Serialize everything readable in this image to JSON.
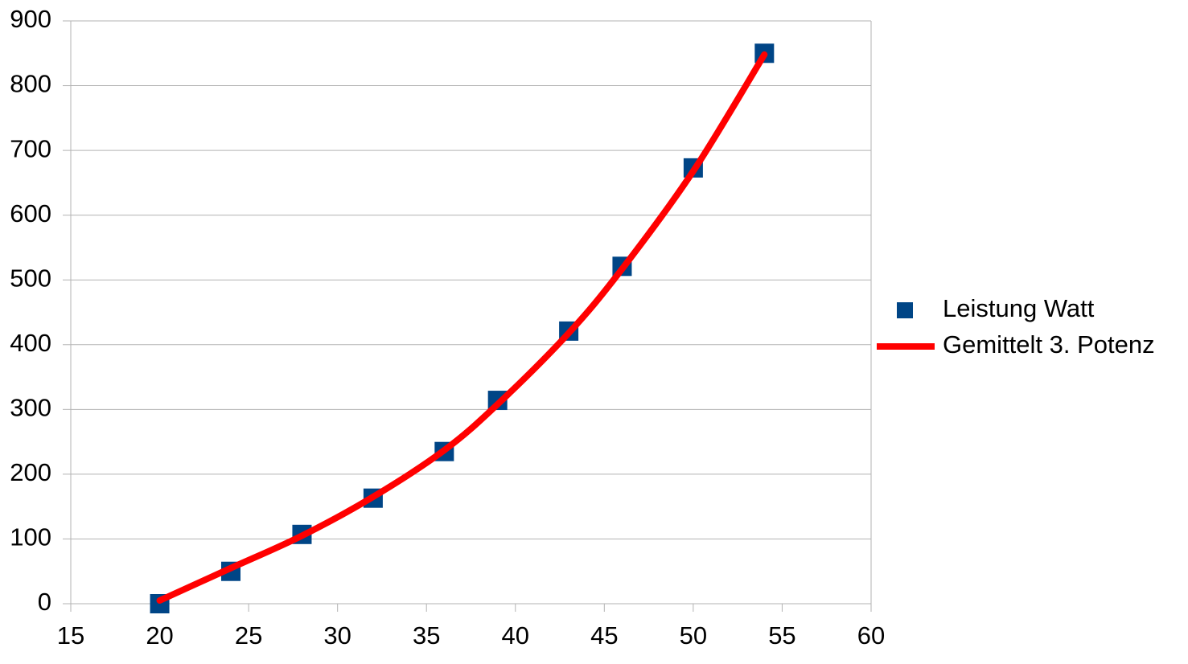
{
  "chart_data": {
    "type": "scatter",
    "series": [
      {
        "name": "Leistung Watt",
        "type": "scatter",
        "color": "#004586",
        "x": [
          20,
          24,
          28,
          32,
          36,
          39,
          43,
          46,
          50,
          54
        ],
        "values": [
          0,
          50,
          107,
          163,
          235,
          314,
          421,
          521,
          673,
          850
        ]
      },
      {
        "name": "Gemittelt 3. Potenz",
        "type": "line",
        "color": "#ff0000",
        "x": [
          20,
          24,
          28,
          32,
          36,
          39,
          43,
          46,
          50,
          54
        ],
        "values": [
          5,
          55,
          105,
          165,
          237,
          308,
          418,
          517,
          668,
          848
        ]
      }
    ],
    "xlim": [
      15,
      60
    ],
    "xticks": [
      15,
      20,
      25,
      30,
      35,
      40,
      45,
      50,
      55,
      60
    ],
    "ylim": [
      0,
      900
    ],
    "yticks": [
      0,
      100,
      200,
      300,
      400,
      500,
      600,
      700,
      800,
      900
    ],
    "grid": true,
    "legend": "right"
  }
}
